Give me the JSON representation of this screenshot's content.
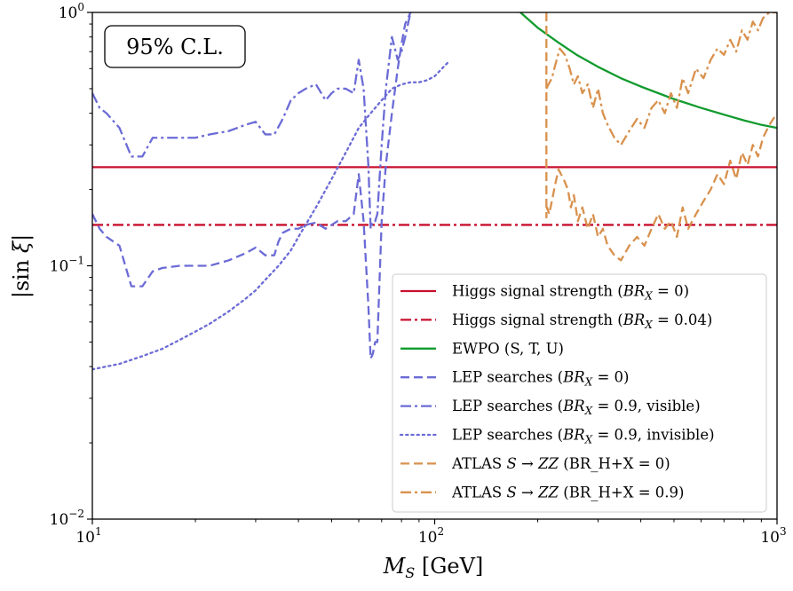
{
  "chart_data": {
    "type": "line",
    "title": "",
    "annotation": "95% C.L.",
    "xlabel": "M_S [GeV]",
    "ylabel": "|sin ξ|",
    "xscale": "log",
    "yscale": "log",
    "xlim": [
      10,
      1000
    ],
    "ylim": [
      0.01,
      1
    ],
    "xticks": [
      {
        "value": 10,
        "base": "10",
        "exp": "1"
      },
      {
        "value": 100,
        "base": "10",
        "exp": "2"
      },
      {
        "value": 1000,
        "base": "10",
        "exp": "3"
      }
    ],
    "yticks": [
      {
        "value": 0.01,
        "base": "10",
        "exp": "−2"
      },
      {
        "value": 0.1,
        "base": "10",
        "exp": "−1"
      },
      {
        "value": 1,
        "base": "10",
        "exp": "0"
      }
    ],
    "legend_position": "lower right",
    "series": [
      {
        "name": "Higgs signal strength (BR_X = 0)",
        "legend_main": "Higgs signal strength (",
        "legend_math": "BR",
        "legend_sub": "X",
        "legend_tail": " = 0)",
        "color": "#c8102e",
        "style": "solid",
        "x": [
          10,
          1000
        ],
        "y": [
          0.245,
          0.245
        ]
      },
      {
        "name": "Higgs signal strength (BR_X = 0.04)",
        "legend_main": "Higgs signal strength (",
        "legend_math": "BR",
        "legend_sub": "X",
        "legend_tail": " = 0.04)",
        "color": "#c8102e",
        "style": "dashdot",
        "x": [
          10,
          1000
        ],
        "y": [
          0.145,
          0.145
        ]
      },
      {
        "name": "EWPO (S, T, U)",
        "legend_main": "EWPO (S, T, U)",
        "legend_math": "",
        "legend_sub": "",
        "legend_tail": "",
        "color": "#119b2e",
        "style": "solid",
        "x": [
          178,
          200,
          230,
          260,
          300,
          350,
          400,
          450,
          500,
          600,
          700,
          800,
          900,
          1000
        ],
        "y": [
          1.0,
          0.87,
          0.76,
          0.68,
          0.61,
          0.55,
          0.51,
          0.48,
          0.455,
          0.42,
          0.395,
          0.375,
          0.36,
          0.35
        ]
      },
      {
        "name": "LEP searches (BR_X = 0)",
        "legend_main": "LEP searches (",
        "legend_math": "BR",
        "legend_sub": "X",
        "legend_tail": " = 0)",
        "color": "#6b6bd6",
        "style": "dashed",
        "x": [
          10,
          10.5,
          11,
          12,
          13,
          14,
          15,
          16,
          18,
          20,
          22,
          25,
          28,
          30,
          32,
          34,
          35,
          36,
          38,
          40,
          42,
          45,
          48,
          50,
          52,
          55,
          58,
          60,
          62,
          64,
          65,
          66,
          67,
          68,
          70,
          72,
          75,
          78,
          80,
          82,
          85
        ],
        "y": [
          0.16,
          0.14,
          0.13,
          0.12,
          0.083,
          0.083,
          0.095,
          0.098,
          0.1,
          0.1,
          0.1,
          0.105,
          0.112,
          0.118,
          0.11,
          0.11,
          0.125,
          0.135,
          0.14,
          0.14,
          0.145,
          0.148,
          0.14,
          0.145,
          0.15,
          0.15,
          0.16,
          0.23,
          0.15,
          0.07,
          0.043,
          0.045,
          0.05,
          0.05,
          0.15,
          0.25,
          0.4,
          0.6,
          0.75,
          0.9,
          1.0
        ]
      },
      {
        "name": "LEP searches (BR_X = 0.9, visible)",
        "legend_main": "LEP searches (",
        "legend_math": "BR",
        "legend_sub": "X",
        "legend_tail": " = 0.9, visible)",
        "color": "#6b6bd6",
        "style": "dashdot",
        "x": [
          10,
          10.5,
          11,
          12,
          13,
          14,
          15,
          16,
          18,
          20,
          22,
          25,
          28,
          30,
          32,
          34,
          36,
          38,
          40,
          42,
          45,
          48,
          50,
          52,
          55,
          58,
          60,
          62,
          64,
          65,
          66,
          67,
          68,
          70,
          72,
          75,
          78,
          80,
          82,
          85
        ],
        "y": [
          0.48,
          0.42,
          0.4,
          0.35,
          0.27,
          0.27,
          0.32,
          0.32,
          0.32,
          0.32,
          0.33,
          0.34,
          0.36,
          0.37,
          0.33,
          0.33,
          0.38,
          0.45,
          0.48,
          0.5,
          0.52,
          0.45,
          0.48,
          0.5,
          0.5,
          0.48,
          0.65,
          0.5,
          0.25,
          0.14,
          0.15,
          0.15,
          0.16,
          0.3,
          0.5,
          0.8,
          0.65,
          0.7,
          0.8,
          1.0
        ]
      },
      {
        "name": "LEP searches (BR_X = 0.9, invisible)",
        "legend_main": "LEP searches (",
        "legend_math": "BR",
        "legend_sub": "X",
        "legend_tail": " = 0.9, invisible)",
        "color": "#6b6bd6",
        "style": "dotted",
        "x": [
          10,
          12,
          14,
          16,
          18,
          20,
          22,
          25,
          28,
          30,
          32,
          35,
          38,
          40,
          45,
          50,
          55,
          60,
          65,
          70,
          75,
          80,
          85,
          90,
          95,
          100,
          105,
          110
        ],
        "y": [
          0.039,
          0.041,
          0.044,
          0.047,
          0.051,
          0.055,
          0.059,
          0.066,
          0.074,
          0.08,
          0.088,
          0.1,
          0.115,
          0.13,
          0.17,
          0.22,
          0.28,
          0.35,
          0.4,
          0.45,
          0.5,
          0.52,
          0.53,
          0.53,
          0.54,
          0.56,
          0.6,
          0.64
        ]
      },
      {
        "name": "ATLAS S → ZZ (BR_H+X = 0)",
        "legend_main": "ATLAS ",
        "legend_math": "S → ZZ",
        "legend_sub": "",
        "legend_tail": " (BR_H+X = 0)",
        "color": "#d8914d",
        "style": "dashed",
        "x": [
          212,
          212,
          213,
          216,
          220,
          225,
          230,
          238,
          245,
          250,
          255,
          262,
          270,
          280,
          290,
          300,
          310,
          320,
          335,
          350,
          370,
          390,
          410,
          430,
          450,
          470,
          490,
          510,
          530,
          550,
          580,
          610,
          640,
          670,
          700,
          730,
          760,
          790,
          820,
          850,
          880,
          910,
          950,
          1000
        ],
        "y": [
          1.0,
          0.155,
          0.17,
          0.16,
          0.18,
          0.21,
          0.24,
          0.22,
          0.2,
          0.17,
          0.19,
          0.15,
          0.17,
          0.14,
          0.16,
          0.13,
          0.14,
          0.12,
          0.11,
          0.105,
          0.12,
          0.13,
          0.12,
          0.14,
          0.16,
          0.14,
          0.15,
          0.13,
          0.17,
          0.14,
          0.16,
          0.18,
          0.2,
          0.23,
          0.21,
          0.26,
          0.22,
          0.28,
          0.25,
          0.3,
          0.27,
          0.32,
          0.36,
          0.4
        ]
      },
      {
        "name": "ATLAS S → ZZ (BR_H+X = 0.9)",
        "legend_main": "ATLAS ",
        "legend_math": "S → ZZ",
        "legend_sub": "",
        "legend_tail": " (BR_H+X = 0.9)",
        "color": "#d8914d",
        "style": "dashdot",
        "x": [
          212,
          215,
          220,
          225,
          232,
          240,
          248,
          255,
          262,
          270,
          280,
          290,
          300,
          310,
          320,
          335,
          350,
          370,
          390,
          410,
          430,
          450,
          470,
          490,
          510,
          530,
          550,
          580,
          610,
          640,
          670,
          700,
          730,
          760,
          790,
          820,
          850,
          880,
          910,
          950,
          990,
          1000
        ],
        "y": [
          0.5,
          0.52,
          0.55,
          0.62,
          0.72,
          0.68,
          0.6,
          0.52,
          0.56,
          0.48,
          0.52,
          0.42,
          0.5,
          0.4,
          0.36,
          0.32,
          0.3,
          0.34,
          0.38,
          0.35,
          0.42,
          0.45,
          0.4,
          0.48,
          0.42,
          0.55,
          0.48,
          0.6,
          0.55,
          0.65,
          0.72,
          0.68,
          0.78,
          0.7,
          0.85,
          0.78,
          0.92,
          0.85,
          0.95,
          1.0,
          1.0,
          1.0
        ]
      }
    ]
  }
}
